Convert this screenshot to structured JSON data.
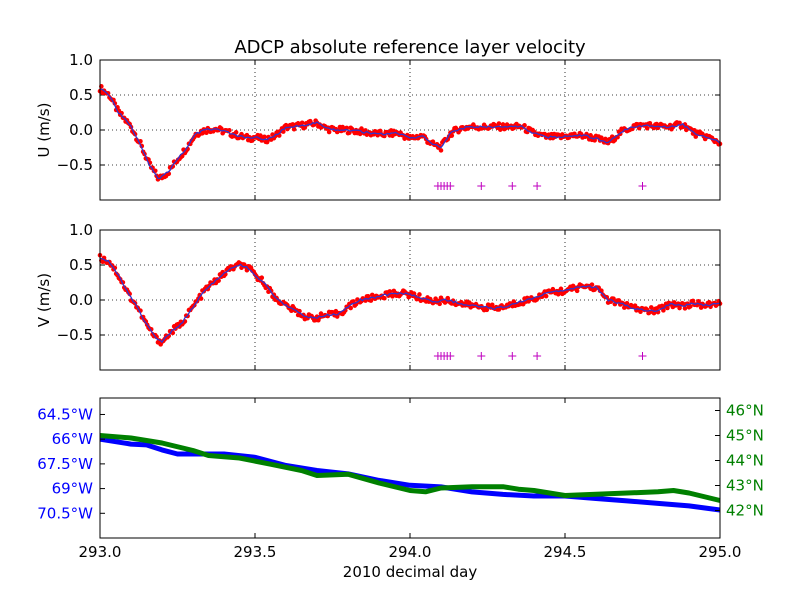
{
  "chart_data": [
    {
      "type": "scatter",
      "title": "ADCP absolute reference layer velocity",
      "ylabel": "U (m/s)",
      "xlim": [
        293.0,
        295.0
      ],
      "ylim": [
        -1.0,
        1.0
      ],
      "yticks": [
        {
          "v": 1.0,
          "label": "1.0"
        },
        {
          "v": 0.5,
          "label": "0.5"
        },
        {
          "v": 0.0,
          "label": "0.0"
        },
        {
          "v": -0.5,
          "label": "−0.5"
        }
      ],
      "grid": true,
      "colors": {
        "points": "#ff0000",
        "line": "#3333cc",
        "markers": "#bf00bf"
      },
      "series": [
        {
          "x": [
            293.0,
            293.03,
            293.06,
            293.1,
            293.13,
            293.16,
            293.19,
            293.22,
            293.25,
            293.28,
            293.31,
            293.34,
            293.37,
            293.4,
            293.43,
            293.46,
            293.48,
            293.5,
            293.53,
            293.56,
            293.6,
            293.63,
            293.67,
            293.7,
            293.73,
            293.76,
            293.8,
            293.84,
            293.88,
            293.92,
            293.96,
            294.0,
            294.04,
            294.07,
            294.1,
            294.13,
            294.16,
            294.2,
            294.24,
            294.28,
            294.32,
            294.36,
            294.4,
            294.44,
            294.48,
            294.52,
            294.56,
            294.6,
            294.64,
            294.68,
            294.72,
            294.76,
            294.8,
            294.84,
            294.88,
            294.92,
            294.96,
            295.0
          ],
          "y": [
            0.6,
            0.5,
            0.25,
            0.05,
            -0.2,
            -0.5,
            -0.7,
            -0.6,
            -0.42,
            -0.25,
            -0.05,
            0.0,
            0.02,
            -0.02,
            -0.06,
            -0.1,
            -0.12,
            -0.1,
            -0.14,
            -0.1,
            0.04,
            0.05,
            0.08,
            0.1,
            0.02,
            0.0,
            0.0,
            -0.02,
            -0.05,
            -0.06,
            -0.04,
            -0.12,
            -0.08,
            -0.2,
            -0.25,
            -0.05,
            0.02,
            0.05,
            0.04,
            0.05,
            0.04,
            0.05,
            -0.05,
            -0.1,
            -0.1,
            -0.08,
            -0.08,
            -0.12,
            -0.18,
            -0.03,
            0.05,
            0.07,
            0.05,
            0.05,
            0.08,
            -0.05,
            -0.1,
            -0.18
          ]
        }
      ],
      "markers": {
        "x": [
          294.09,
          294.1,
          294.11,
          294.12,
          294.13,
          294.23,
          294.33,
          294.41,
          294.75
        ],
        "y": -0.8
      }
    },
    {
      "type": "scatter",
      "ylabel": "V (m/s)",
      "xlim": [
        293.0,
        295.0
      ],
      "ylim": [
        -1.0,
        1.0
      ],
      "yticks": [
        {
          "v": 1.0,
          "label": "1.0"
        },
        {
          "v": 0.5,
          "label": "0.5"
        },
        {
          "v": 0.0,
          "label": "0.0"
        },
        {
          "v": -0.5,
          "label": "−0.5"
        }
      ],
      "grid": true,
      "colors": {
        "points": "#ff0000",
        "line": "#3333cc",
        "markers": "#bf00bf"
      },
      "series": [
        {
          "x": [
            293.0,
            293.03,
            293.06,
            293.09,
            293.12,
            293.15,
            293.18,
            293.2,
            293.23,
            293.26,
            293.3,
            293.34,
            293.38,
            293.42,
            293.45,
            293.48,
            293.5,
            293.53,
            293.56,
            293.6,
            293.64,
            293.67,
            293.7,
            293.73,
            293.77,
            293.8,
            293.84,
            293.88,
            293.92,
            293.96,
            294.0,
            294.04,
            294.08,
            294.12,
            294.16,
            294.2,
            294.24,
            294.28,
            294.32,
            294.36,
            294.4,
            294.44,
            294.48,
            294.52,
            294.56,
            294.6,
            294.64,
            294.68,
            294.72,
            294.76,
            294.8,
            294.84,
            294.88,
            294.92,
            294.96,
            295.0
          ],
          "y": [
            0.6,
            0.55,
            0.35,
            0.1,
            -0.1,
            -0.35,
            -0.55,
            -0.6,
            -0.45,
            -0.35,
            -0.1,
            0.15,
            0.3,
            0.45,
            0.5,
            0.45,
            0.35,
            0.25,
            0.05,
            -0.08,
            -0.18,
            -0.25,
            -0.25,
            -0.22,
            -0.2,
            -0.1,
            0.0,
            0.03,
            0.07,
            0.1,
            0.08,
            0.02,
            -0.02,
            0.0,
            -0.05,
            -0.08,
            -0.1,
            -0.12,
            -0.08,
            -0.02,
            0.02,
            0.1,
            0.12,
            0.15,
            0.2,
            0.18,
            0.0,
            -0.05,
            -0.12,
            -0.15,
            -0.15,
            -0.05,
            -0.08,
            -0.05,
            -0.08,
            -0.05
          ]
        }
      ],
      "markers": {
        "x": [
          294.09,
          294.1,
          294.11,
          294.12,
          294.13,
          294.23,
          294.33,
          294.41,
          294.75
        ],
        "y": -0.8
      }
    },
    {
      "type": "line",
      "xlabel": "2010 decimal day",
      "xlim": [
        293.0,
        295.0
      ],
      "xticks": [
        {
          "v": 293.0,
          "label": "293.0"
        },
        {
          "v": 293.5,
          "label": "293.5"
        },
        {
          "v": 294.0,
          "label": "294.0"
        },
        {
          "v": 294.5,
          "label": "294.5"
        },
        {
          "v": 295.0,
          "label": "295.0"
        }
      ],
      "left_axis": {
        "ylim": [
          63.5,
          72.0
        ],
        "inverted": true,
        "color": "#0000ff",
        "ticks": [
          {
            "v": 64.5,
            "label": "64.5°W"
          },
          {
            "v": 66.0,
            "label": "66°W"
          },
          {
            "v": 67.5,
            "label": "67.5°W"
          },
          {
            "v": 69.0,
            "label": "69°W"
          },
          {
            "v": 70.5,
            "label": "70.5°W"
          }
        ]
      },
      "right_axis": {
        "ylim": [
          40.9,
          46.5
        ],
        "color": "#008000",
        "ticks": [
          {
            "v": 46,
            "label": "46°N"
          },
          {
            "v": 45,
            "label": "45°N"
          },
          {
            "v": 44,
            "label": "44°N"
          },
          {
            "v": 43,
            "label": "43°N"
          },
          {
            "v": 42,
            "label": "42°N"
          }
        ]
      },
      "series": [
        {
          "axis": "left",
          "color": "#0000ff",
          "x": [
            293.0,
            293.1,
            293.15,
            293.2,
            293.25,
            293.35,
            293.4,
            293.5,
            293.6,
            293.7,
            293.8,
            293.9,
            294.0,
            294.1,
            294.2,
            294.3,
            294.4,
            294.5,
            294.6,
            294.7,
            294.8,
            294.9,
            295.0
          ],
          "y": [
            66.0,
            66.3,
            66.35,
            66.65,
            66.9,
            66.9,
            66.9,
            67.1,
            67.6,
            67.9,
            68.1,
            68.5,
            68.8,
            68.9,
            69.2,
            69.35,
            69.45,
            69.45,
            69.6,
            69.75,
            69.9,
            70.05,
            70.3
          ]
        },
        {
          "axis": "right",
          "color": "#008000",
          "x": [
            293.0,
            293.1,
            293.2,
            293.3,
            293.35,
            293.45,
            293.55,
            293.65,
            293.7,
            293.8,
            293.9,
            294.0,
            294.05,
            294.1,
            294.2,
            294.3,
            294.35,
            294.4,
            294.5,
            294.6,
            294.7,
            294.8,
            294.85,
            294.9,
            295.0
          ],
          "y": [
            45.0,
            44.9,
            44.7,
            44.4,
            44.2,
            44.1,
            43.85,
            43.6,
            43.4,
            43.45,
            43.1,
            42.8,
            42.75,
            42.9,
            42.95,
            42.95,
            42.85,
            42.8,
            42.6,
            42.65,
            42.7,
            42.75,
            42.8,
            42.7,
            42.4
          ]
        }
      ]
    }
  ]
}
